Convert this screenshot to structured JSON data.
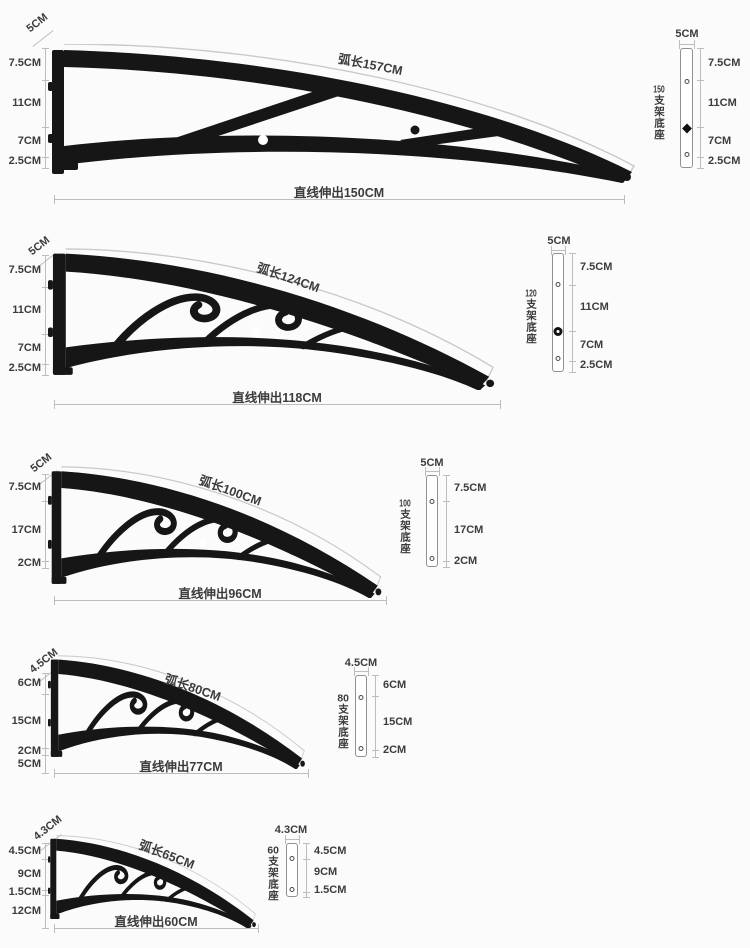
{
  "page": {
    "background": "#fbfbfb",
    "line_color": "#bdbdbd",
    "text_color": "#3c3c3c",
    "bracket_color": "#161616"
  },
  "rows": [
    {
      "wall_width": "5CM",
      "left_dims": [
        "7.5CM",
        "11CM",
        "7CM",
        "2.5CM"
      ],
      "arc_label": "弧长157CM",
      "extension_label": "直线伸出150CM",
      "plate": {
        "number": "150",
        "name": "支架底座",
        "width": "5CM",
        "right_dims": [
          "7.5CM",
          "11CM",
          "7CM",
          "2.5CM"
        ]
      }
    },
    {
      "wall_width": "5CM",
      "left_dims": [
        "7.5CM",
        "11CM",
        "7CM",
        "2.5CM"
      ],
      "arc_label": "弧长124CM",
      "extension_label": "直线伸出118CM",
      "plate": {
        "number": "120",
        "name": "支架底座",
        "width": "5CM",
        "right_dims": [
          "7.5CM",
          "11CM",
          "7CM",
          "2.5CM"
        ]
      }
    },
    {
      "wall_width": "5CM",
      "left_dims": [
        "7.5CM",
        "17CM",
        "2CM"
      ],
      "arc_label": "弧长100CM",
      "extension_label": "直线伸出96CM",
      "plate": {
        "number": "100",
        "name": "支架底座",
        "width": "5CM",
        "right_dims": [
          "7.5CM",
          "17CM",
          "2CM"
        ]
      }
    },
    {
      "wall_width": "4.5CM",
      "left_dims": [
        "6CM",
        "15CM",
        "2CM"
      ],
      "extra_left_dim": "5CM",
      "arc_label": "弧长80CM",
      "extension_label": "直线伸出77CM",
      "plate": {
        "number": "80",
        "name": "支架底座",
        "width": "4.5CM",
        "right_dims": [
          "6CM",
          "15CM",
          "2CM"
        ]
      }
    },
    {
      "wall_width": "4.3CM",
      "left_dims": [
        "4.5CM",
        "9CM",
        "1.5CM"
      ],
      "extra_left_dim": "12CM",
      "arc_label": "弧长65CM",
      "extension_label": "直线伸出60CM",
      "plate": {
        "number": "60",
        "name": "支架底座",
        "width": "4.3CM",
        "right_dims": [
          "4.5CM",
          "9CM",
          "1.5CM"
        ]
      }
    }
  ]
}
